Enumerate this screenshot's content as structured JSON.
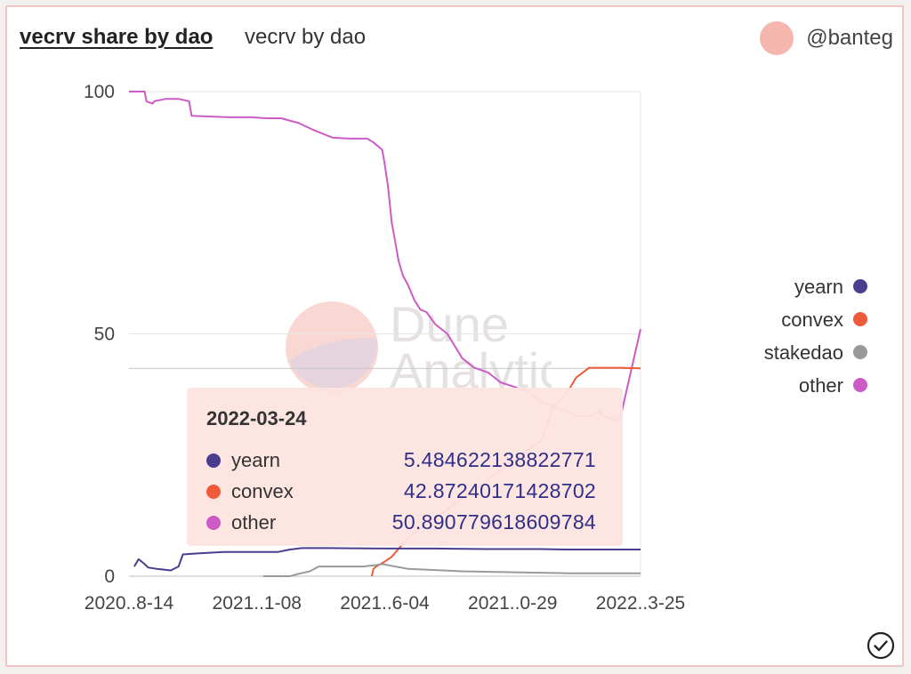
{
  "header": {
    "title": "vecrv share by dao",
    "subtitle": "vecrv by dao",
    "author": "@banteg"
  },
  "watermark": {
    "line1": "Dune",
    "line2": "Analytics"
  },
  "colors": {
    "yearn": "#4a3d8f",
    "convex": "#ee5a3a",
    "stakedao": "#999999",
    "other": "#cc5bc6",
    "avatar": "#f4b6ad"
  },
  "tooltip": {
    "date": "2022-03-24",
    "rows": [
      {
        "name": "yearn",
        "value": "5.484622138822771",
        "color": "#4a3d8f"
      },
      {
        "name": "convex",
        "value": "42.87240171428702",
        "color": "#ee5a3a"
      },
      {
        "name": "other",
        "value": "50.890779618609784",
        "color": "#cc5bc6"
      }
    ]
  },
  "chart_data": {
    "type": "line",
    "title": "vecrv share by dao",
    "xlabel": "",
    "ylabel": "",
    "ylim": [
      0,
      100
    ],
    "y_ticks": [
      0,
      50,
      100
    ],
    "x_tick_labels": [
      "2020..8-14",
      "2021..1-08",
      "2021..6-04",
      "2021..0-29",
      "2022..3-25"
    ],
    "x_tick_dates": [
      "2020-08-14",
      "2021-01-08",
      "2021-06-04",
      "2021-10-29",
      "2022-03-25"
    ],
    "grid": true,
    "legend_position": "right",
    "series": [
      {
        "name": "other",
        "x": [
          "2020-08-14",
          "2020-09-01",
          "2020-09-03",
          "2020-09-10",
          "2020-09-12",
          "2020-09-25",
          "2020-10-10",
          "2020-10-22",
          "2020-10-25",
          "2020-11-20",
          "2020-12-10",
          "2021-01-01",
          "2021-01-20",
          "2021-02-05",
          "2021-02-25",
          "2021-03-15",
          "2021-04-05",
          "2021-04-25",
          "2021-05-15",
          "2021-05-22",
          "2021-06-01",
          "2021-06-04",
          "2021-06-08",
          "2021-06-12",
          "2021-06-15",
          "2021-06-20",
          "2021-06-25",
          "2021-07-01",
          "2021-07-08",
          "2021-07-15",
          "2021-07-22",
          "2021-08-01",
          "2021-08-15",
          "2021-09-01",
          "2021-09-15",
          "2021-10-01",
          "2021-10-15",
          "2021-11-01",
          "2021-11-15",
          "2021-12-01",
          "2021-12-15",
          "2021-12-31",
          "2022-01-10",
          "2022-01-25",
          "2022-02-05",
          "2022-02-10",
          "2022-03-01",
          "2022-03-25"
        ],
        "y": [
          100,
          100,
          98,
          97.5,
          98,
          98.5,
          98.5,
          98,
          95,
          94.8,
          94.7,
          94.7,
          94.5,
          94.5,
          93.5,
          92,
          90.5,
          90.3,
          90.3,
          89.5,
          88,
          85,
          80,
          73,
          70,
          65,
          62,
          60,
          57,
          55,
          54.5,
          52,
          50,
          45,
          43,
          42,
          40,
          39,
          38,
          36,
          35,
          34,
          33,
          33,
          34,
          33,
          32,
          51
        ]
      },
      {
        "name": "convex",
        "x": [
          "2021-05-20",
          "2021-05-22",
          "2021-05-25",
          "2021-06-04",
          "2021-06-12",
          "2021-07-01",
          "2021-08-01",
          "2021-09-01",
          "2021-10-01",
          "2021-11-01",
          "2021-12-01",
          "2021-12-15",
          "2021-12-31",
          "2022-01-10",
          "2022-01-25",
          "2022-02-10",
          "2022-03-01",
          "2022-03-25"
        ],
        "y": [
          0,
          1.5,
          2,
          3,
          4,
          8,
          12,
          16,
          20,
          24,
          28,
          35,
          38,
          41,
          43,
          43,
          43,
          42.9
        ]
      },
      {
        "name": "yearn",
        "x": [
          "2020-08-20",
          "2020-08-25",
          "2020-09-01",
          "2020-09-05",
          "2020-09-15",
          "2020-10-01",
          "2020-10-10",
          "2020-10-15",
          "2020-11-01",
          "2020-12-01",
          "2021-01-01",
          "2021-02-01",
          "2021-02-15",
          "2021-03-01",
          "2021-04-01",
          "2021-06-01",
          "2021-08-01",
          "2021-10-01",
          "2021-12-01",
          "2022-01-01",
          "2022-02-01",
          "2022-03-25"
        ],
        "y": [
          2,
          3.5,
          2.5,
          1.8,
          1.5,
          1.2,
          2,
          4.5,
          4.7,
          5,
          5,
          5,
          5.5,
          5.8,
          5.8,
          5.7,
          5.7,
          5.6,
          5.6,
          5.5,
          5.5,
          5.5
        ]
      },
      {
        "name": "stakedao",
        "x": [
          "2021-01-15",
          "2021-02-15",
          "2021-02-25",
          "2021-03-10",
          "2021-03-20",
          "2021-04-10",
          "2021-05-10",
          "2021-05-25",
          "2021-06-01",
          "2021-07-01",
          "2021-09-01",
          "2021-11-01",
          "2022-01-01",
          "2022-03-25"
        ],
        "y": [
          0,
          0,
          0.5,
          1,
          2,
          2,
          2,
          2.3,
          2.5,
          1.5,
          1,
          0.8,
          0.6,
          0.6
        ]
      }
    ],
    "legend": [
      "yearn",
      "convex",
      "stakedao",
      "other"
    ]
  }
}
